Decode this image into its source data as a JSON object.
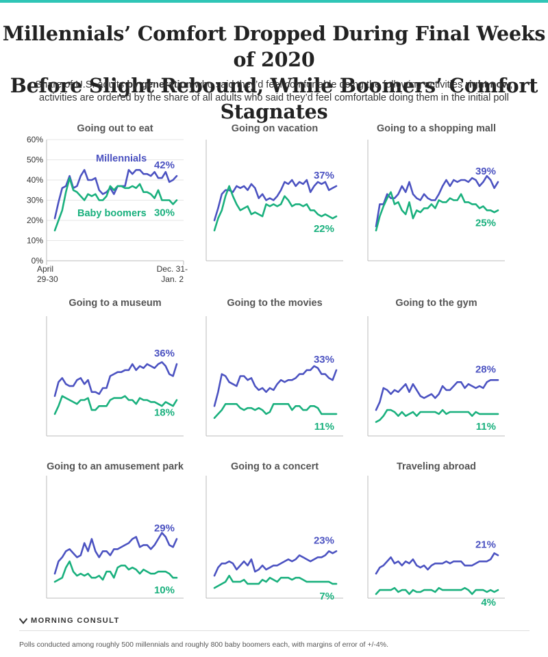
{
  "title_line1": "Millennials’ Comfort Dropped During Final Weeks of 2020",
  "title_line2": "Before Slight Rebound, While Boomers’ Comfort Stagnates",
  "subtitle": {
    "line1_a": "Share of U.S. adults ",
    "line1_b": "by generation",
    "line1_c": " who said they’d feel comfortable doing the following activities ",
    "line1_d": "right now",
    "line1_e": ";",
    "line2": "activities are ordered by the share of all adults who said they’d feel comfortable doing them in the initial poll"
  },
  "colors": {
    "millennials": "#4b52c1",
    "boomers": "#19b07d",
    "axis": "#999999",
    "grid": "#e6e6e6",
    "text": "#555555"
  },
  "brand": "MORNING CONSULT",
  "footnote": "Polls conducted among roughly 500 millennials and roughly 800 baby boomers each, with margins of error of +/-4%.",
  "chart_data": [
    {
      "type": "line",
      "title": "Going out to eat",
      "y_ticks": [
        "0%",
        "10%",
        "20%",
        "30%",
        "40%",
        "50%",
        "60%"
      ],
      "ylim": [
        0,
        60
      ],
      "x_labels": {
        "start": [
          "April",
          "29-30"
        ],
        "end": [
          "Dec. 31-",
          "Jan. 2"
        ]
      },
      "series": [
        {
          "name": "Millennials",
          "end_label": "42%",
          "values": [
            21,
            29,
            36,
            37,
            42,
            36,
            37,
            42,
            45,
            40,
            40,
            41,
            35,
            33,
            34,
            36,
            33,
            37,
            37,
            37,
            45,
            43,
            45,
            45,
            43,
            43,
            42,
            44,
            41,
            41,
            44,
            39,
            40,
            42
          ]
        },
        {
          "name": "Baby boomers",
          "end_label": "30%",
          "values": [
            15,
            20,
            25,
            34,
            41,
            35,
            34,
            32,
            30,
            33,
            32,
            33,
            30,
            30,
            32,
            37,
            35,
            37,
            37,
            36,
            36,
            37,
            36,
            38,
            34,
            34,
            33,
            31,
            35,
            30,
            30,
            30,
            28,
            30
          ]
        }
      ]
    },
    {
      "type": "line",
      "title": "Going on vacation",
      "series": [
        {
          "end_label": "37%",
          "values": [
            20,
            26,
            33,
            35,
            35,
            34,
            37,
            36,
            37,
            35,
            38,
            36,
            31,
            33,
            30,
            31,
            30,
            32,
            35,
            39,
            38,
            40,
            37,
            39,
            38,
            40,
            34,
            37,
            39,
            38,
            39,
            35,
            36,
            37
          ]
        },
        {
          "end_label": "22%",
          "values": [
            15,
            21,
            25,
            32,
            37,
            32,
            28,
            25,
            26,
            27,
            23,
            24,
            23,
            22,
            28,
            27,
            28,
            27,
            28,
            32,
            30,
            27,
            28,
            28,
            27,
            28,
            25,
            25,
            23,
            22,
            23,
            22,
            21,
            22
          ]
        }
      ]
    },
    {
      "type": "line",
      "title": "Going to a shopping mall",
      "series": [
        {
          "end_label": "39%",
          "values": [
            17,
            28,
            28,
            33,
            31,
            31,
            33,
            37,
            34,
            39,
            33,
            31,
            30,
            33,
            31,
            30,
            30,
            33,
            37,
            40,
            37,
            40,
            39,
            40,
            40,
            39,
            41,
            40,
            37,
            39,
            42,
            40,
            36,
            39
          ]
        },
        {
          "end_label": "25%",
          "values": [
            15,
            22,
            27,
            31,
            34,
            28,
            29,
            25,
            23,
            29,
            21,
            25,
            24,
            26,
            26,
            28,
            26,
            30,
            29,
            29,
            31,
            30,
            30,
            33,
            29,
            29,
            28,
            28,
            26,
            27,
            25,
            25,
            24,
            25
          ]
        }
      ]
    },
    {
      "type": "line",
      "title": "Going to a museum",
      "series": [
        {
          "end_label": "36%",
          "values": [
            20,
            27,
            29,
            26,
            25,
            25,
            28,
            29,
            26,
            28,
            22,
            22,
            21,
            24,
            24,
            30,
            31,
            32,
            32,
            33,
            33,
            36,
            33,
            35,
            34,
            36,
            35,
            34,
            36,
            37,
            35,
            31,
            30,
            36
          ]
        },
        {
          "end_label": "18%",
          "values": [
            11,
            15,
            20,
            19,
            18,
            17,
            16,
            18,
            18,
            19,
            13,
            13,
            15,
            15,
            15,
            18,
            19,
            19,
            19,
            20,
            18,
            18,
            16,
            19,
            18,
            18,
            17,
            17,
            16,
            15,
            17,
            16,
            15,
            18
          ]
        }
      ]
    },
    {
      "type": "line",
      "title": "Going to the movies",
      "series": [
        {
          "end_label": "33%",
          "values": [
            15,
            22,
            31,
            30,
            27,
            26,
            25,
            30,
            30,
            28,
            29,
            25,
            23,
            24,
            22,
            24,
            23,
            26,
            28,
            27,
            28,
            28,
            29,
            31,
            31,
            33,
            33,
            35,
            34,
            31,
            31,
            29,
            28,
            33
          ]
        },
        {
          "end_label": "11%",
          "values": [
            9,
            11,
            13,
            16,
            16,
            16,
            16,
            14,
            13,
            14,
            14,
            13,
            14,
            13,
            11,
            12,
            16,
            16,
            16,
            16,
            16,
            13,
            15,
            15,
            13,
            13,
            15,
            15,
            14,
            11,
            11,
            11,
            11,
            11
          ]
        }
      ]
    },
    {
      "type": "line",
      "title": "Going to the gym",
      "series": [
        {
          "end_label": "28%",
          "values": [
            13,
            17,
            24,
            23,
            21,
            23,
            22,
            24,
            26,
            22,
            26,
            23,
            20,
            19,
            20,
            21,
            19,
            21,
            25,
            23,
            23,
            25,
            27,
            27,
            24,
            26,
            25,
            24,
            25,
            24,
            27,
            28,
            28,
            28
          ]
        },
        {
          "end_label": "11%",
          "values": [
            7,
            8,
            10,
            13,
            13,
            12,
            10,
            12,
            10,
            11,
            12,
            10,
            12,
            12,
            12,
            12,
            12,
            11,
            13,
            11,
            12,
            12,
            12,
            12,
            12,
            12,
            10,
            12,
            11,
            11,
            11,
            11,
            11,
            11
          ]
        }
      ]
    },
    {
      "type": "line",
      "title": "Going to an amusement park",
      "series": [
        {
          "end_label": "29%",
          "values": [
            12,
            18,
            20,
            23,
            24,
            22,
            20,
            21,
            27,
            23,
            29,
            23,
            20,
            23,
            23,
            21,
            24,
            24,
            25,
            26,
            27,
            29,
            30,
            25,
            26,
            26,
            24,
            26,
            29,
            32,
            30,
            26,
            25,
            29
          ]
        },
        {
          "end_label": "10%",
          "values": [
            8,
            9,
            10,
            15,
            18,
            13,
            11,
            12,
            11,
            12,
            10,
            10,
            11,
            9,
            13,
            13,
            10,
            15,
            16,
            16,
            14,
            15,
            14,
            12,
            14,
            13,
            12,
            12,
            13,
            13,
            13,
            12,
            10,
            10
          ]
        }
      ]
    },
    {
      "type": "line",
      "title": "Going to a concert",
      "series": [
        {
          "end_label": "23%",
          "values": [
            11,
            15,
            17,
            17,
            18,
            17,
            14,
            16,
            18,
            16,
            19,
            13,
            14,
            16,
            14,
            15,
            16,
            16,
            17,
            18,
            19,
            18,
            19,
            21,
            20,
            19,
            18,
            19,
            20,
            20,
            21,
            23,
            22,
            23
          ]
        },
        {
          "end_label": "7%",
          "values": [
            5,
            6,
            7,
            8,
            11,
            8,
            8,
            8,
            9,
            7,
            7,
            7,
            7,
            9,
            8,
            10,
            9,
            8,
            10,
            10,
            10,
            9,
            10,
            10,
            9,
            8,
            8,
            8,
            8,
            8,
            8,
            8,
            7,
            7
          ]
        }
      ]
    },
    {
      "type": "line",
      "title": "Traveling abroad",
      "series": [
        {
          "end_label": "21%",
          "values": [
            12,
            15,
            16,
            18,
            20,
            17,
            18,
            16,
            18,
            17,
            19,
            16,
            15,
            16,
            14,
            16,
            17,
            17,
            17,
            18,
            17,
            18,
            18,
            18,
            16,
            16,
            16,
            17,
            18,
            18,
            18,
            19,
            22,
            21
          ]
        },
        {
          "end_label": "4%",
          "values": [
            2,
            4,
            4,
            4,
            4,
            5,
            3,
            4,
            4,
            2,
            4,
            3,
            3,
            4,
            4,
            4,
            3,
            5,
            4,
            4,
            4,
            4,
            4,
            4,
            5,
            4,
            2,
            4,
            4,
            4,
            3,
            4,
            3,
            4
          ]
        }
      ]
    }
  ]
}
